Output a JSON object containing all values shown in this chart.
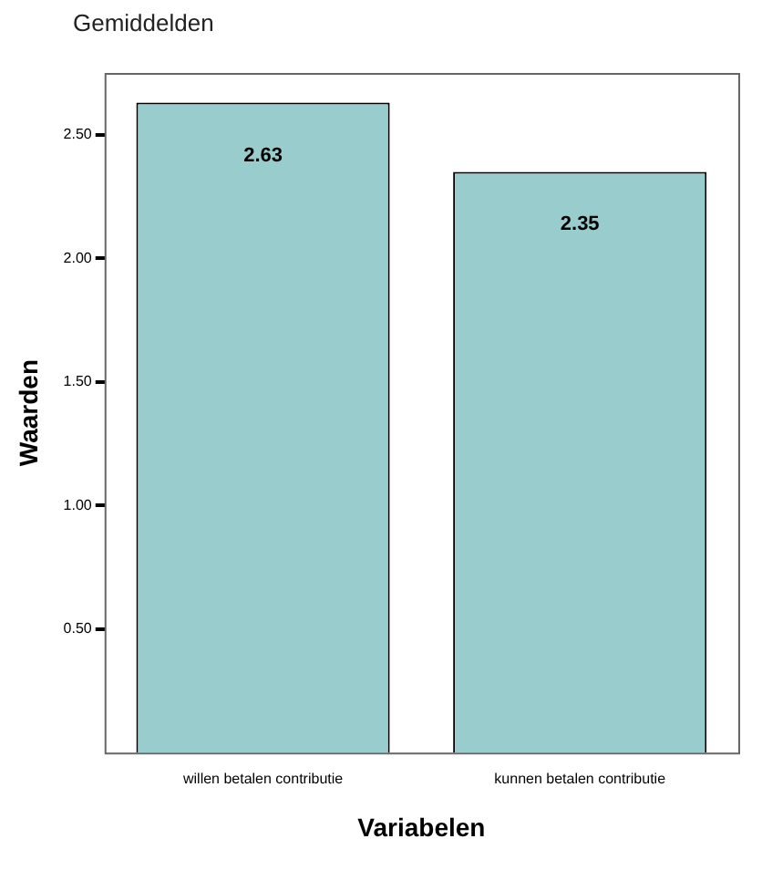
{
  "chart_data": {
    "type": "bar",
    "title": "Gemiddelden",
    "xlabel": "Variabelen",
    "ylabel": "Waarden",
    "categories": [
      "willen betalen contributie",
      "kunnen betalen contributie"
    ],
    "values": [
      2.63,
      2.35
    ],
    "color": "#99cccc",
    "data_labels": true,
    "ylim": [
      0,
      2.75
    ],
    "yticks": [
      {
        "value": 0.5,
        "label": "0.50"
      },
      {
        "value": 1,
        "label": "1.00"
      },
      {
        "value": 1.5,
        "label": "1.50"
      },
      {
        "value": 2,
        "label": "2.00"
      },
      {
        "value": 2.5,
        "label": "2.50"
      }
    ],
    "grid": false,
    "legend": false
  }
}
